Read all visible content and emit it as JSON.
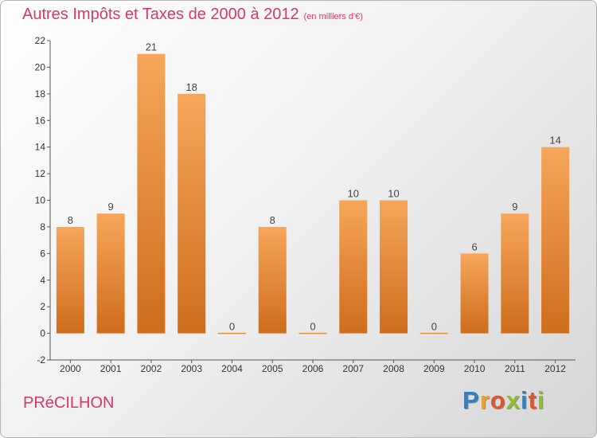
{
  "header": {
    "title": "Autres Impôts et Taxes de 2000 à 2012",
    "unit": "(en milliers d'€)"
  },
  "commune": "PRéCILHON",
  "logo": {
    "letters": [
      "P",
      "r",
      "o",
      "x",
      "i",
      "t",
      "i"
    ],
    "colors": [
      "#2f7fc1",
      "#f0a31c",
      "#e2542f",
      "#8dbf2e",
      "#2f7fc1",
      "#e2542f",
      "#8dbf2e"
    ]
  },
  "chart_data": {
    "type": "bar",
    "categories": [
      "2000",
      "2001",
      "2002",
      "2003",
      "2004",
      "2005",
      "2006",
      "2007",
      "2008",
      "2009",
      "2010",
      "2011",
      "2012"
    ],
    "values": [
      8,
      9,
      21,
      18,
      0,
      8,
      0,
      10,
      10,
      0,
      6,
      9,
      14
    ],
    "ylim": [
      -2,
      22
    ],
    "yticks": [
      -2,
      0,
      2,
      4,
      6,
      8,
      10,
      12,
      14,
      16,
      18,
      20,
      22
    ],
    "grid": false,
    "colors": {
      "bar_light": "#f6a65a",
      "bar_dark": "#cf6d1b",
      "zero_line": "#e0913f"
    }
  }
}
